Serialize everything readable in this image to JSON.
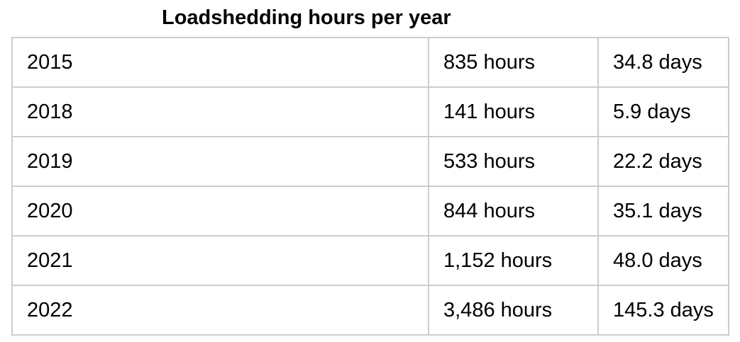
{
  "title": "Loadshedding hours per year",
  "colors": {
    "background": "#ffffff",
    "border": "#cccccc",
    "text": "#000000"
  },
  "table": {
    "rows": [
      {
        "year": "2015",
        "hours": "835 hours",
        "days": "34.8 days"
      },
      {
        "year": "2018",
        "hours": "141 hours",
        "days": "5.9 days"
      },
      {
        "year": "2019",
        "hours": "533 hours",
        "days": "22.2 days"
      },
      {
        "year": "2020",
        "hours": "844 hours",
        "days": "35.1 days"
      },
      {
        "year": "2021",
        "hours": "1,152 hours",
        "days": "48.0 days"
      },
      {
        "year": "2022",
        "hours": "3,486 hours",
        "days": "145.3 days"
      }
    ]
  },
  "chart_data": {
    "type": "table",
    "title": "Loadshedding hours per year",
    "columns": [
      "year",
      "hours",
      "days"
    ],
    "rows": [
      {
        "year": 2015,
        "hours": 835,
        "days": 34.8
      },
      {
        "year": 2018,
        "hours": 141,
        "days": 5.9
      },
      {
        "year": 2019,
        "hours": 533,
        "days": 22.2
      },
      {
        "year": 2020,
        "hours": 844,
        "days": 35.1
      },
      {
        "year": 2021,
        "hours": 1152,
        "days": 48.0
      },
      {
        "year": 2022,
        "hours": 3486,
        "days": 145.3
      }
    ]
  }
}
